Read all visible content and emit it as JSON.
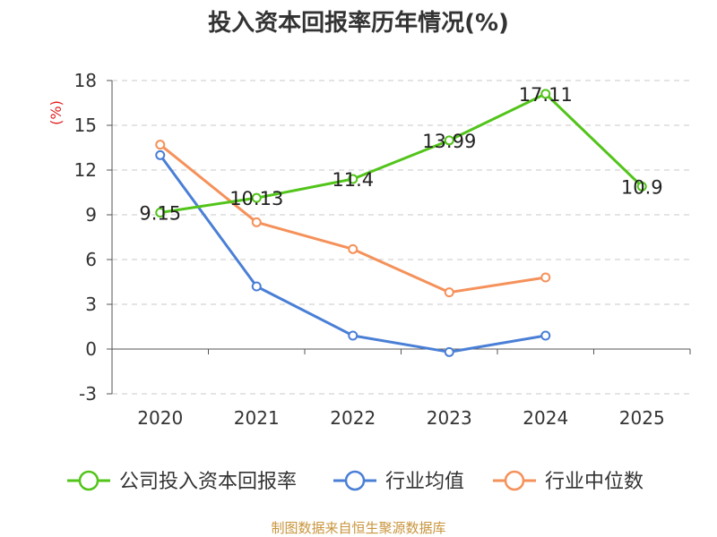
{
  "chart_data": {
    "type": "line",
    "title": "投入资本回报率历年情况(%)",
    "ylabel": "(%)",
    "xlabel": "",
    "categories": [
      "2020",
      "2021",
      "2022",
      "2023",
      "2024",
      "2025"
    ],
    "ylim": [
      -3,
      18
    ],
    "yticks": [
      -3,
      0,
      3,
      6,
      9,
      12,
      15,
      18
    ],
    "grid": true,
    "legend_position": "bottom",
    "series": [
      {
        "name": "公司投入资本回报率",
        "color": "#52c41a",
        "values": [
          9.15,
          10.13,
          11.4,
          13.99,
          17.11,
          10.9
        ],
        "labels": [
          "9.15",
          "10.13",
          "11.4",
          "13.99",
          "17.11",
          "10.9"
        ]
      },
      {
        "name": "行业均值",
        "color": "#4a7fd6",
        "values": [
          13.0,
          4.2,
          0.9,
          -0.2,
          0.9,
          null
        ]
      },
      {
        "name": "行业中位数",
        "color": "#f5915a",
        "values": [
          13.7,
          8.5,
          6.7,
          3.8,
          4.8,
          null
        ]
      }
    ],
    "source": "制图数据来自恒生聚源数据库"
  }
}
